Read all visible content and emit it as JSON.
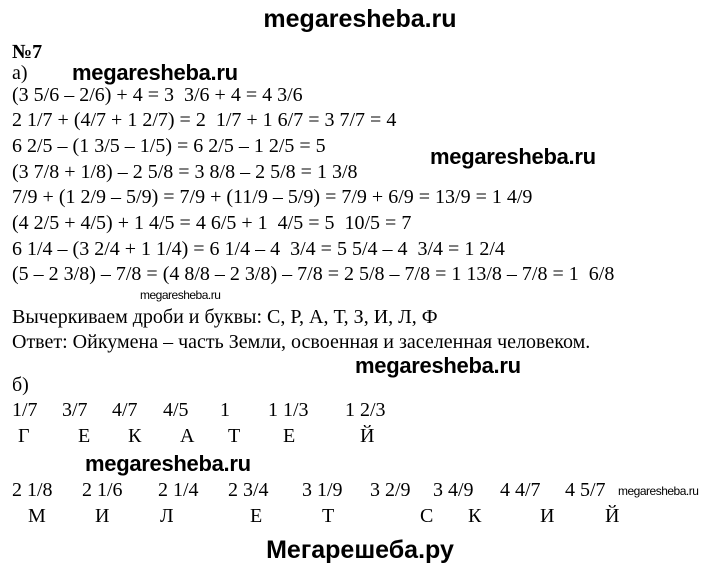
{
  "header": {
    "site": "megaresheba.ru"
  },
  "task": {
    "number": "№7",
    "part_a": "а)",
    "part_b": "б)"
  },
  "part_a_lines": [
    "(3 5/6 – 2/6) + 4 = 3  3/6 + 4 = 4 3/6",
    "2 1/7 + (4/7 + 1 2/7) = 2  1/7 + 1 6/7 = 3 7/7 = 4",
    "6 2/5 – (1 3/5 – 1/5) = 6 2/5 – 1 2/5 = 5",
    "(3 7/8 + 1/8) – 2 5/8 = 3 8/8 – 2 5/8 = 1 3/8",
    "7/9 + (1 2/9 – 5/9) = 7/9 + (11/9 – 5/9) = 7/9 + 6/9 = 13/9 = 1 4/9",
    "(4 2/5 + 4/5) + 1 4/5 = 4 6/5 + 1  4/5 = 5  10/5 = 7",
    "6 1/4 – (3 2/4 + 1 1/4) = 6 1/4 – 4  3/4 = 5 5/4 – 4  3/4 = 1 2/4",
    "(5 – 2 3/8) – 7/8 = (4 8/8 – 2 3/8) – 7/8 = 2 5/8 – 7/8 = 1 13/8 – 7/8 = 1  6/8"
  ],
  "cross_out": "Вычеркиваем дроби и буквы: С, Р, А, Т, З, И, Л, Ф",
  "answer": "Ответ: Ойкумена – часть Земли, освоенная и заселенная человеком.",
  "part_b": {
    "row1_fractions": [
      "1/7",
      "3/7",
      "4/7",
      "4/5",
      "1",
      "1 1/3",
      "1 2/3"
    ],
    "row1_letters": [
      "Г",
      "Е",
      "К",
      "А",
      "Т",
      "Е",
      "Й"
    ],
    "row2_fractions": [
      "2 1/8",
      "2 1/6",
      "2 1/4",
      "2 3/4",
      "3 1/9",
      "3 2/9",
      "3 4/9",
      "4 4/7",
      "4 5/7"
    ],
    "row2_letters": [
      "М",
      "И",
      "Л",
      "Е",
      "Т",
      "С",
      "К",
      "И",
      "Й"
    ]
  },
  "watermarks": [
    "megaresheba.ru",
    "megaresheba.ru",
    "megaresheba.ru",
    "megaresheba.ru",
    "megaresheba.ru",
    "megaresheba.ru"
  ],
  "footer": {
    "site": "Мегарешеба.ру"
  }
}
